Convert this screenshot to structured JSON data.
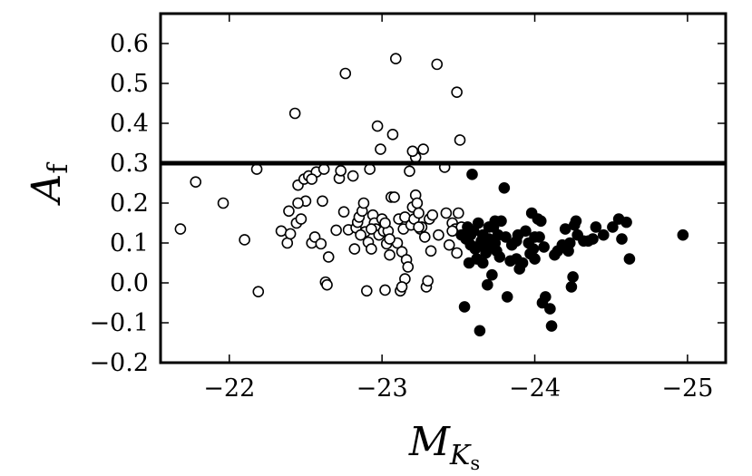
{
  "chart_data": {
    "type": "scatter",
    "xlabel": "M",
    "xlabel_sub": "K",
    "xlabel_subsub": "s",
    "ylabel": "A",
    "ylabel_sub": "f",
    "xlim": [
      -21.55,
      -25.25
    ],
    "ylim": [
      -0.2,
      0.675
    ],
    "x_ticks": [
      -22,
      -23,
      -24,
      -25
    ],
    "x_tick_labels": [
      "−22",
      "−23",
      "−24",
      "−25"
    ],
    "y_ticks": [
      -0.2,
      -0.1,
      0.0,
      0.1,
      0.2,
      0.3,
      0.4,
      0.5,
      0.6
    ],
    "y_tick_labels": [
      "−0.2",
      "−0.1",
      "0.0",
      "0.1",
      "0.2",
      "0.3",
      "0.4",
      "0.5",
      "0.6"
    ],
    "threshold_line": {
      "y": 0.3
    },
    "grid": false,
    "series": [
      {
        "marker": "open-circle",
        "color": "#000000",
        "points": [
          [
            -21.68,
            0.135
          ],
          [
            -21.78,
            0.253
          ],
          [
            -21.96,
            0.2
          ],
          [
            -22.1,
            0.108
          ],
          [
            -22.19,
            -0.022
          ],
          [
            -22.18,
            0.285
          ],
          [
            -22.34,
            0.13
          ],
          [
            -22.38,
            0.1
          ],
          [
            -22.39,
            0.18
          ],
          [
            -22.4,
            0.123
          ],
          [
            -22.43,
            0.425
          ],
          [
            -22.44,
            0.15
          ],
          [
            -22.45,
            0.245
          ],
          [
            -22.47,
            0.16
          ],
          [
            -22.49,
            0.26
          ],
          [
            -22.5,
            0.205
          ],
          [
            -22.52,
            0.268
          ],
          [
            -22.54,
            0.1
          ],
          [
            -22.56,
            0.115
          ],
          [
            -22.57,
            0.278
          ],
          [
            -22.6,
            0.098
          ],
          [
            -22.61,
            0.205
          ],
          [
            -22.62,
            0.285
          ],
          [
            -22.63,
            0.002
          ],
          [
            -22.64,
            -0.005
          ],
          [
            -22.65,
            0.065
          ],
          [
            -22.7,
            0.132
          ],
          [
            -22.72,
            0.262
          ],
          [
            -22.73,
            0.281
          ],
          [
            -22.75,
            0.178
          ],
          [
            -22.76,
            0.525
          ],
          [
            -22.78,
            0.133
          ],
          [
            -22.81,
            0.268
          ],
          [
            -22.82,
            0.085
          ],
          [
            -22.83,
            0.138
          ],
          [
            -22.84,
            0.152
          ],
          [
            -22.85,
            0.165
          ],
          [
            -22.87,
            0.18
          ],
          [
            -22.88,
            0.2
          ],
          [
            -22.89,
            0.128
          ],
          [
            -22.9,
            -0.02
          ],
          [
            -22.91,
            0.102
          ],
          [
            -22.92,
            0.285
          ],
          [
            -22.93,
            0.085
          ],
          [
            -22.94,
            0.17
          ],
          [
            -22.95,
            0.15
          ],
          [
            -22.96,
            0.135
          ],
          [
            -22.97,
            0.393
          ],
          [
            -22.98,
            0.12
          ],
          [
            -22.99,
            0.335
          ],
          [
            -23.0,
            0.16
          ],
          [
            -23.01,
            0.13
          ],
          [
            -23.02,
            -0.018
          ],
          [
            -23.03,
            0.098
          ],
          [
            -23.04,
            0.13
          ],
          [
            -23.05,
            0.07
          ],
          [
            -23.06,
            0.215
          ],
          [
            -23.07,
            0.372
          ],
          [
            -23.08,
            0.215
          ],
          [
            -23.09,
            0.562
          ],
          [
            -23.1,
            0.1
          ],
          [
            -23.11,
            0.16
          ],
          [
            -23.12,
            -0.02
          ],
          [
            -23.13,
            0.078
          ],
          [
            -23.14,
            0.135
          ],
          [
            -23.15,
            0.165
          ],
          [
            -23.16,
            0.058
          ],
          [
            -23.17,
            0.04
          ],
          [
            -23.18,
            0.28
          ],
          [
            -23.19,
            0.145
          ],
          [
            -23.2,
            0.19
          ],
          [
            -23.21,
            0.16
          ],
          [
            -23.22,
            0.22
          ],
          [
            -23.23,
            0.2
          ],
          [
            -23.24,
            0.175
          ],
          [
            -23.25,
            0.135
          ],
          [
            -23.26,
            0.14
          ],
          [
            -23.27,
            0.335
          ],
          [
            -23.28,
            0.115
          ],
          [
            -23.29,
            -0.01
          ],
          [
            -23.3,
            0.005
          ],
          [
            -23.31,
            0.16
          ],
          [
            -23.32,
            0.08
          ],
          [
            -23.33,
            0.17
          ],
          [
            -23.36,
            0.548
          ],
          [
            -23.37,
            0.12
          ],
          [
            -23.41,
            0.29
          ],
          [
            -23.42,
            0.175
          ],
          [
            -23.44,
            0.095
          ],
          [
            -23.46,
            0.15
          ],
          [
            -23.48,
            0.135
          ],
          [
            -23.49,
            0.478
          ],
          [
            -23.5,
            0.175
          ],
          [
            -23.51,
            0.358
          ],
          [
            -23.52,
            0.14
          ],
          [
            -23.46,
            0.13
          ],
          [
            -23.22,
            0.315
          ],
          [
            -23.2,
            0.33
          ],
          [
            -23.24,
            0.14
          ],
          [
            -23.02,
            0.15
          ],
          [
            -22.93,
            0.135
          ],
          [
            -23.49,
            0.075
          ],
          [
            -23.15,
            0.01
          ],
          [
            -23.13,
            -0.01
          ],
          [
            -22.45,
            0.2
          ],
          [
            -22.54,
            0.26
          ],
          [
            -22.86,
            0.12
          ],
          [
            -23.05,
            0.11
          ]
        ]
      },
      {
        "marker": "filled-circle",
        "color": "#000000",
        "points": [
          [
            -23.54,
            -0.06
          ],
          [
            -23.55,
            0.11
          ],
          [
            -23.56,
            0.14
          ],
          [
            -23.57,
            0.05
          ],
          [
            -23.58,
            0.095
          ],
          [
            -23.59,
            0.272
          ],
          [
            -23.6,
            0.13
          ],
          [
            -23.61,
            0.085
          ],
          [
            -23.62,
            0.06
          ],
          [
            -23.63,
            0.15
          ],
          [
            -23.64,
            -0.12
          ],
          [
            -23.65,
            0.105
          ],
          [
            -23.66,
            0.12
          ],
          [
            -23.67,
            0.09
          ],
          [
            -23.68,
            0.075
          ],
          [
            -23.69,
            -0.005
          ],
          [
            -23.7,
            0.11
          ],
          [
            -23.71,
            0.095
          ],
          [
            -23.72,
            0.02
          ],
          [
            -23.73,
            0.14
          ],
          [
            -23.74,
            0.155
          ],
          [
            -23.75,
            0.08
          ],
          [
            -23.76,
            0.12
          ],
          [
            -23.77,
            0.065
          ],
          [
            -23.78,
            0.155
          ],
          [
            -23.8,
            0.238
          ],
          [
            -23.81,
            0.115
          ],
          [
            -23.82,
            -0.035
          ],
          [
            -23.84,
            0.055
          ],
          [
            -23.85,
            0.095
          ],
          [
            -23.88,
            0.105
          ],
          [
            -23.89,
            0.12
          ],
          [
            -23.9,
            0.035
          ],
          [
            -23.92,
            0.05
          ],
          [
            -23.94,
            0.13
          ],
          [
            -23.96,
            0.1
          ],
          [
            -23.97,
            0.073
          ],
          [
            -23.98,
            0.175
          ],
          [
            -23.99,
            0.085
          ],
          [
            -24.0,
            0.06
          ],
          [
            -24.02,
            0.16
          ],
          [
            -24.03,
            0.115
          ],
          [
            -24.04,
            0.155
          ],
          [
            -24.05,
            -0.05
          ],
          [
            -24.06,
            0.09
          ],
          [
            -24.07,
            -0.035
          ],
          [
            -24.1,
            -0.065
          ],
          [
            -24.11,
            -0.108
          ],
          [
            -24.13,
            0.07
          ],
          [
            -24.15,
            0.08
          ],
          [
            -24.18,
            0.095
          ],
          [
            -24.2,
            0.135
          ],
          [
            -24.22,
            0.08
          ],
          [
            -24.23,
            0.1
          ],
          [
            -24.24,
            -0.01
          ],
          [
            -24.25,
            0.015
          ],
          [
            -24.26,
            0.145
          ],
          [
            -24.27,
            0.155
          ],
          [
            -24.28,
            0.12
          ],
          [
            -24.32,
            0.105
          ],
          [
            -24.35,
            0.105
          ],
          [
            -24.38,
            0.11
          ],
          [
            -24.4,
            0.14
          ],
          [
            -24.45,
            0.12
          ],
          [
            -24.51,
            0.14
          ],
          [
            -24.55,
            0.16
          ],
          [
            -24.57,
            0.11
          ],
          [
            -24.6,
            0.152
          ],
          [
            -24.62,
            0.06
          ],
          [
            -24.97,
            0.12
          ],
          [
            -23.58,
            0.12
          ],
          [
            -23.62,
            0.09
          ],
          [
            -23.66,
            0.05
          ],
          [
            -23.7,
            0.14
          ],
          [
            -23.74,
            0.1
          ],
          [
            -23.52,
            0.12
          ],
          [
            -23.88,
            0.06
          ],
          [
            -24.0,
            0.115
          ]
        ]
      }
    ]
  }
}
